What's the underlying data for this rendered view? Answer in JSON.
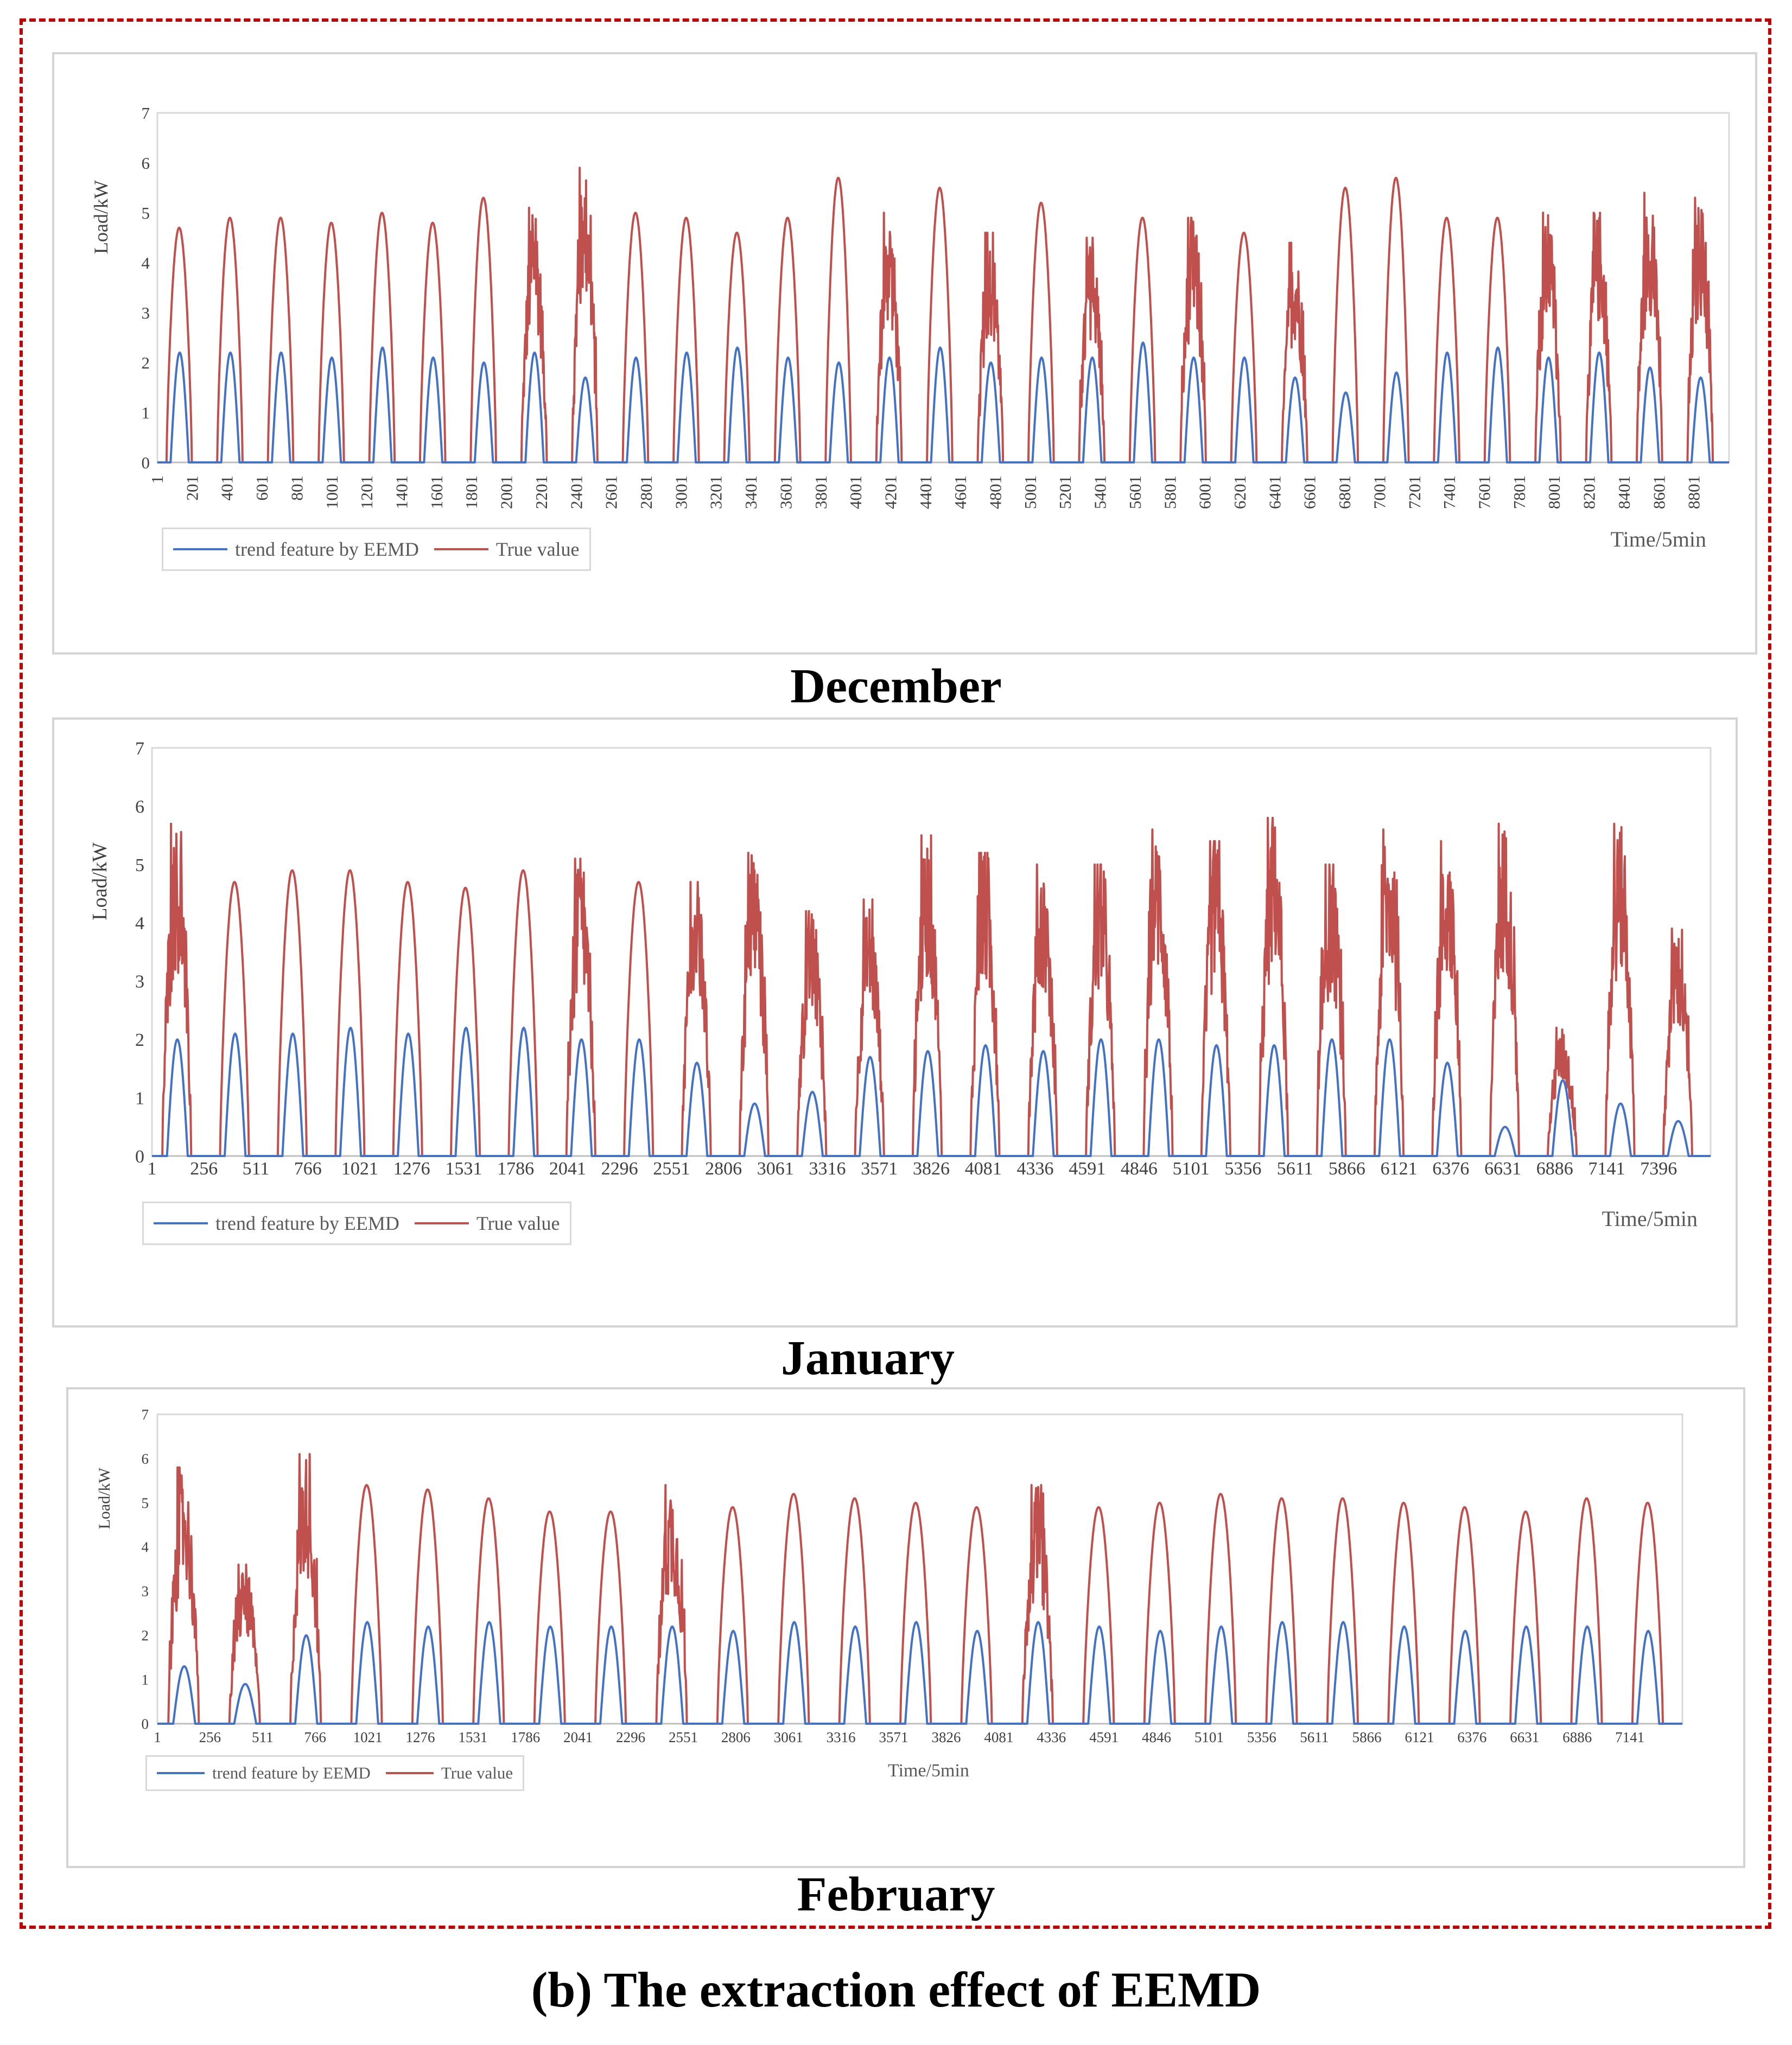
{
  "caption": "(b) The extraction effect of EEMD",
  "colors": {
    "trend": "#4472c4",
    "true": "#c0504d",
    "frame": "#c00000"
  },
  "chart_data": [
    {
      "type": "line",
      "month": "December",
      "ylabel": "Load/kW",
      "xlabel": "Time/5min",
      "ylim": [
        0,
        7
      ],
      "yticks": [
        "0",
        "1",
        "2",
        "3",
        "4",
        "5",
        "6",
        "7"
      ],
      "categories": [
        "1",
        "201",
        "401",
        "601",
        "801",
        "1001",
        "1201",
        "1401",
        "1601",
        "1801",
        "2001",
        "2201",
        "2401",
        "2601",
        "2801",
        "3001",
        "3201",
        "3401",
        "3601",
        "3801",
        "4001",
        "4201",
        "4401",
        "4601",
        "4801",
        "5001",
        "5201",
        "5401",
        "5601",
        "5801",
        "6001",
        "6201",
        "6401",
        "6601",
        "6801",
        "7001",
        "7201",
        "7401",
        "7601",
        "7801",
        "8001",
        "8201",
        "8401",
        "8601",
        "8801"
      ],
      "legend": [
        "trend feature by EEMD",
        "True value"
      ],
      "series": [
        {
          "name": "True value",
          "daily_peaks": [
            4.7,
            4.9,
            4.9,
            4.8,
            5.0,
            4.8,
            5.3,
            5.1,
            5.9,
            5.0,
            4.9,
            4.6,
            4.9,
            5.7,
            5.0,
            5.5,
            4.6,
            5.2,
            4.5,
            4.9,
            4.9,
            4.6,
            4.4,
            5.5,
            5.7,
            4.9,
            4.9,
            5.0,
            5.0,
            5.4,
            5.3
          ],
          "noisy_days": [
            7,
            8,
            14,
            16,
            18,
            20,
            22,
            27,
            28,
            29,
            30
          ]
        },
        {
          "name": "trend feature by EEMD",
          "daily_peaks": [
            2.2,
            2.2,
            2.2,
            2.1,
            2.3,
            2.1,
            2.0,
            2.2,
            1.7,
            2.1,
            2.2,
            2.3,
            2.1,
            2.0,
            2.1,
            2.3,
            2.0,
            2.1,
            2.1,
            2.4,
            2.1,
            2.1,
            1.7,
            1.4,
            1.8,
            2.2,
            2.3,
            2.1,
            2.2,
            1.9,
            1.7
          ]
        }
      ]
    },
    {
      "type": "line",
      "month": "January",
      "ylabel": "Load/kW",
      "xlabel": "Time/5min",
      "ylim": [
        0,
        7
      ],
      "yticks": [
        "0",
        "1",
        "2",
        "3",
        "4",
        "5",
        "6",
        "7"
      ],
      "categories": [
        "1",
        "256",
        "511",
        "766",
        "1021",
        "1276",
        "1531",
        "1786",
        "2041",
        "2296",
        "2551",
        "2806",
        "3061",
        "3316",
        "3571",
        "3826",
        "4081",
        "4336",
        "4591",
        "4846",
        "5101",
        "5356",
        "5611",
        "5866",
        "6121",
        "6376",
        "6631",
        "6886",
        "7141",
        "7396"
      ],
      "legend": [
        "trend feature by EEMD",
        "True value"
      ],
      "series": [
        {
          "name": "True value",
          "daily_peaks": [
            5.7,
            4.7,
            4.9,
            4.9,
            4.7,
            4.6,
            4.9,
            5.1,
            4.7,
            4.7,
            5.2,
            4.2,
            4.4,
            5.5,
            5.2,
            5.0,
            5.0,
            5.6,
            5.4,
            5.8,
            5.0,
            5.6,
            5.4,
            5.7,
            2.2,
            5.7,
            3.9
          ],
          "noisy_days": [
            0,
            7,
            9,
            10,
            11,
            12,
            13,
            14,
            15,
            16,
            17,
            18,
            19,
            20,
            21,
            22,
            23,
            24,
            25,
            26
          ]
        },
        {
          "name": "trend feature by EEMD",
          "daily_peaks": [
            2.0,
            2.1,
            2.1,
            2.2,
            2.1,
            2.2,
            2.2,
            2.0,
            2.0,
            1.6,
            0.9,
            1.1,
            1.7,
            1.8,
            1.9,
            1.8,
            2.0,
            2.0,
            1.9,
            1.9,
            2.0,
            2.0,
            1.6,
            0.5,
            1.3,
            0.9,
            0.6
          ]
        }
      ]
    },
    {
      "type": "line",
      "month": "February",
      "ylabel": "Load/kW",
      "xlabel": "Time/5min",
      "ylim": [
        0,
        7
      ],
      "yticks": [
        "0",
        "1",
        "2",
        "3",
        "4",
        "5",
        "6",
        "7"
      ],
      "categories": [
        "1",
        "256",
        "511",
        "766",
        "1021",
        "1276",
        "1531",
        "1786",
        "2041",
        "2296",
        "2551",
        "2806",
        "3061",
        "3316",
        "3571",
        "3826",
        "4081",
        "4336",
        "4591",
        "4846",
        "5101",
        "5356",
        "5611",
        "5866",
        "6121",
        "6376",
        "6631",
        "6886",
        "7141"
      ],
      "legend": [
        "trend feature by EEMD",
        "True value"
      ],
      "series": [
        {
          "name": "True value",
          "daily_peaks": [
            5.8,
            3.6,
            6.1,
            5.4,
            5.3,
            5.1,
            4.8,
            4.8,
            5.4,
            4.9,
            5.2,
            5.1,
            5.0,
            4.9,
            5.4,
            4.9,
            5.0,
            5.2,
            5.1,
            5.1,
            5.0,
            4.9,
            4.8,
            5.1,
            5.0
          ],
          "noisy_days": [
            0,
            1,
            2,
            8,
            14
          ]
        },
        {
          "name": "trend feature by EEMD",
          "daily_peaks": [
            1.3,
            0.9,
            2.0,
            2.3,
            2.2,
            2.3,
            2.2,
            2.2,
            2.2,
            2.1,
            2.3,
            2.2,
            2.3,
            2.1,
            2.3,
            2.2,
            2.1,
            2.2,
            2.3,
            2.3,
            2.2,
            2.1,
            2.2,
            2.2,
            2.1
          ]
        }
      ]
    }
  ]
}
